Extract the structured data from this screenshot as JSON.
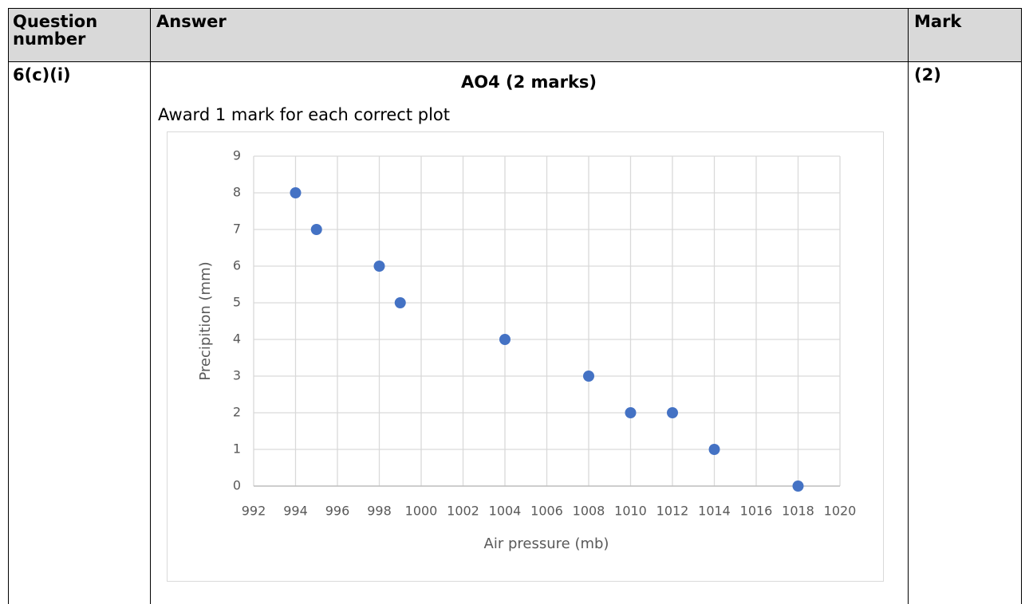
{
  "table": {
    "headers": [
      "Question number",
      "Answer",
      "Mark"
    ],
    "rows": [
      {
        "question": "6(c)(i)",
        "heading": "AO4 (2 marks)",
        "text": "Award 1 mark for each correct plot",
        "mark": "(2)"
      }
    ]
  },
  "chart_data": {
    "type": "scatter",
    "x": [
      994,
      995,
      998,
      999,
      1004,
      1008,
      1010,
      1012,
      1014,
      1018
    ],
    "values": [
      8,
      7,
      6,
      5,
      4,
      3,
      2,
      2,
      1,
      0
    ],
    "color": "#4472c4",
    "x_label": "Air pressure (mb)",
    "y_label": "Precipition (mm)",
    "xlim": [
      992,
      1020
    ],
    "xticks": [
      992,
      994,
      996,
      998,
      1000,
      1002,
      1004,
      1006,
      1008,
      1010,
      1012,
      1014,
      1016,
      1018,
      1020
    ],
    "ylim": [
      0,
      9
    ],
    "yticks": [
      0,
      1,
      2,
      3,
      4,
      5,
      6,
      7,
      8,
      9
    ],
    "grid": true
  }
}
